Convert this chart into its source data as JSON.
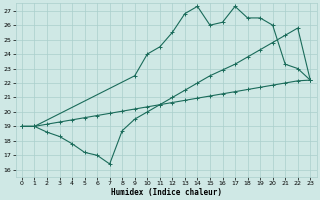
{
  "xlabel": "Humidex (Indice chaleur)",
  "bg_color": "#cfe8e5",
  "grid_color": "#aacfcc",
  "line_color": "#1a6b5a",
  "xlim": [
    -0.5,
    23.5
  ],
  "ylim": [
    15.5,
    27.5
  ],
  "yticks": [
    16,
    17,
    18,
    19,
    20,
    21,
    22,
    23,
    24,
    25,
    26,
    27
  ],
  "xticks": [
    0,
    1,
    2,
    3,
    4,
    5,
    6,
    7,
    8,
    9,
    10,
    11,
    12,
    13,
    14,
    15,
    16,
    17,
    18,
    19,
    20,
    21,
    22,
    23
  ],
  "line1_x": [
    0,
    1,
    2,
    3,
    4,
    5,
    6,
    7,
    8,
    9,
    10,
    11,
    12,
    13,
    14,
    15,
    16,
    17,
    18,
    19,
    20,
    21,
    22,
    23
  ],
  "line1_y": [
    19,
    19,
    18.6,
    18.3,
    17.8,
    17.2,
    17.0,
    16.4,
    18.7,
    19.5,
    20.0,
    20.5,
    21.0,
    21.5,
    22.0,
    22.5,
    22.9,
    23.3,
    23.8,
    24.3,
    24.8,
    25.3,
    25.8,
    22.2
  ],
  "line2_x": [
    0,
    1,
    2,
    3,
    4,
    5,
    6,
    7,
    8,
    9,
    10,
    11,
    12,
    13,
    14,
    15,
    16,
    17,
    18,
    19,
    20,
    21,
    22,
    23
  ],
  "line2_y": [
    19,
    19,
    19.15,
    19.3,
    19.45,
    19.6,
    19.75,
    19.9,
    20.05,
    20.2,
    20.35,
    20.5,
    20.65,
    20.8,
    20.95,
    21.1,
    21.25,
    21.4,
    21.55,
    21.7,
    21.85,
    22.0,
    22.15,
    22.2
  ],
  "line3_x": [
    0,
    1,
    9,
    10,
    11,
    12,
    13,
    14,
    15,
    16,
    17,
    18,
    19,
    20,
    21,
    22,
    23
  ],
  "line3_y": [
    19,
    19,
    22.5,
    24.0,
    24.5,
    25.5,
    26.8,
    27.3,
    26.0,
    26.2,
    27.3,
    26.5,
    26.5,
    26.0,
    23.3,
    23.0,
    22.2
  ]
}
